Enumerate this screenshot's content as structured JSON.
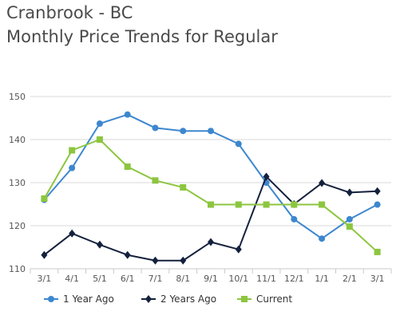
{
  "chart_data": {
    "type": "line",
    "title": "Cranbrook - BC",
    "subtitle": "Monthly Price Trends for Regular",
    "categories": [
      "3/1",
      "4/1",
      "5/1",
      "6/1",
      "7/1",
      "8/1",
      "9/1",
      "10/1",
      "11/1",
      "12/1",
      "1/1",
      "2/1",
      "3/1"
    ],
    "ylim": [
      110,
      150
    ],
    "yticks": [
      110,
      120,
      130,
      140,
      150
    ],
    "grid": "horizontal",
    "legend_position": "bottom",
    "series": [
      {
        "name": "1 Year Ago",
        "color": "#3d87cf",
        "marker": "circle",
        "values": [
          126.0,
          133.4,
          143.7,
          145.8,
          142.7,
          142.0,
          142.0,
          139.0,
          130.0,
          121.5,
          117.0,
          121.5,
          124.9
        ]
      },
      {
        "name": "2 Years Ago",
        "color": "#14213d",
        "marker": "diamond",
        "values": [
          113.2,
          118.2,
          115.6,
          113.2,
          111.9,
          111.9,
          116.2,
          114.5,
          131.4,
          125.0,
          129.9,
          127.7,
          128.0
        ]
      },
      {
        "name": "Current",
        "color": "#8cc63f",
        "marker": "square",
        "values": [
          126.3,
          137.5,
          140.0,
          133.7,
          130.5,
          128.9,
          124.9,
          124.9,
          124.9,
          124.9,
          124.9,
          119.8,
          113.9
        ]
      }
    ]
  }
}
